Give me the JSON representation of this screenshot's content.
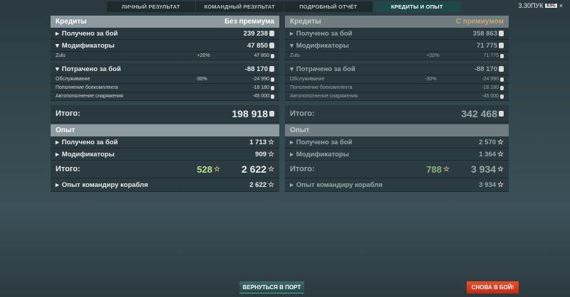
{
  "tabs": [
    "ЛИЧНЫЙ РЕЗУЛЬТАТ",
    "КОМАНДНЫЙ РЕЗУЛЬТАТ",
    "ПОДРОБНЫЙ ОТЧЁТ",
    "КРЕДИТЫ И ОПЫТ"
  ],
  "active_tab": 3,
  "top_right": {
    "time": "3.30ПУК",
    "esc": "ESC",
    "close": "×"
  },
  "columns": [
    {
      "credits_title": "Кредиты",
      "mode": "Без премиума",
      "earned_label": "Получено за бой",
      "earned": "239 238",
      "mods_label": "Модификаторы",
      "mods": "47 850",
      "zulu_label": "Zulu",
      "zulu_pct": "+20%",
      "zulu": "47 850",
      "spent_label": "Потрачено за бой",
      "spent": "-88 170",
      "service_label": "Обслуживание",
      "service_pct": "-30%",
      "service": "-24 990",
      "ammo_label": "Пополнение боекомплекта",
      "ammo": "-18 180",
      "equip_label": "Автопополнение снаряжения",
      "equip": "-45 000",
      "total_label": "Итого:",
      "total": "198 918",
      "xp_title": "Опыт",
      "xp_earned_label": "Получено за бой",
      "xp_earned": "1 713",
      "xp_mods_label": "Модификаторы",
      "xp_mods": "909",
      "xp_total_label": "Итого:",
      "xp_free": "528",
      "xp_total": "2 622",
      "cmd_label": "Опыт командиру корабля",
      "cmd": "2 622"
    },
    {
      "credits_title": "Кредиты",
      "mode": "С премиумом",
      "earned_label": "Получено за бой",
      "earned": "358 863",
      "mods_label": "Модификаторы",
      "mods": "71 775",
      "zulu_label": "Zulu",
      "zulu_pct": "+20%",
      "zulu": "71 775",
      "spent_label": "Потрачено за бой",
      "spent": "-88 170",
      "service_label": "Обслуживание",
      "service_pct": "-30%",
      "service": "-24 990",
      "ammo_label": "Пополнение боекомплекта",
      "ammo": "-18 180",
      "equip_label": "Автопополнение снаряжения",
      "equip": "-45 000",
      "total_label": "Итого:",
      "total": "342 468",
      "xp_title": "Опыт",
      "xp_earned_label": "Получено за бой",
      "xp_earned": "2 570",
      "xp_mods_label": "Модификаторы",
      "xp_mods": "1 364",
      "xp_total_label": "Итого:",
      "xp_free": "788",
      "xp_total": "3 934",
      "cmd_label": "Опыт командиру корабля",
      "cmd": "3 934"
    }
  ],
  "buttons": {
    "port": "ВЕРНУТЬСЯ В ПОРТ",
    "battle": "СНОВА В БОЙ!"
  },
  "colors": {
    "accent_tab": "#1d4a48",
    "battle_button": "#d8391a",
    "premium": "#c9a765",
    "free_xp": "#b7e38a"
  }
}
